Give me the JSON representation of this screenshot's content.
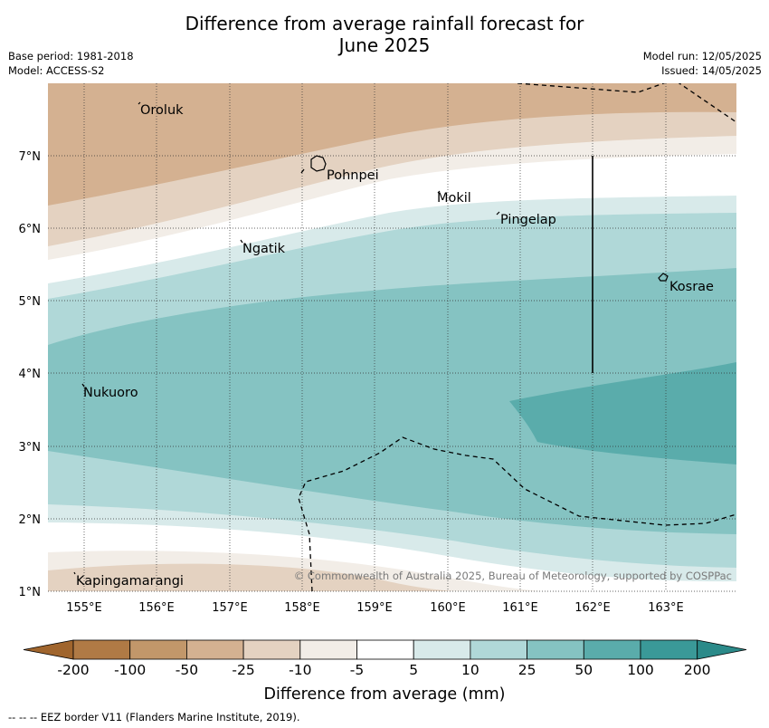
{
  "title_line1": "Difference from average rainfall forecast for",
  "title_line2": "June 2025",
  "meta_left": {
    "base_period": "Base period: 1981-2018",
    "model": "Model: ACCESS-S2"
  },
  "meta_right": {
    "model_run": "Model run: 12/05/2025",
    "issued": "Issued: 14/05/2025"
  },
  "map": {
    "lon_ticks": [
      "155°E",
      "156°E",
      "157°E",
      "158°E",
      "159°E",
      "160°E",
      "161°E",
      "162°E",
      "163°E"
    ],
    "lat_ticks": [
      "7°N",
      "6°N",
      "5°N",
      "4°N",
      "3°N",
      "2°N",
      "1°N"
    ],
    "places": {
      "oroluk": "Oroluk",
      "pohnpei": "Pohnpei",
      "mokil": "Mokil",
      "pingelap": "Pingelap",
      "ngatik": "Ngatik",
      "kosrae": "Kosrae",
      "nukuoro": "Nukuoro",
      "kapingamarangi": "Kapingamarangi"
    },
    "copyright": "© Commonwealth of Australia 2025, Bureau of Meteorology, supported by COSPPac"
  },
  "colorbar": {
    "title": "Difference from average (mm)",
    "labels": [
      "-200",
      "-100",
      "-50",
      "-25",
      "-10",
      "-5",
      "5",
      "10",
      "25",
      "50",
      "100",
      "200"
    ],
    "colors": [
      "#a0652d",
      "#b07a45",
      "#c2976a",
      "#d4b191",
      "#e4d2c1",
      "#f2ede7",
      "#ffffff",
      "#d8eaea",
      "#b0d8d8",
      "#85c3c2",
      "#5aacab",
      "#3a9998",
      "#2b8a89"
    ]
  },
  "footer": "--  --  -- EEZ border V11 (Flanders Marine Institute, 2019)."
}
